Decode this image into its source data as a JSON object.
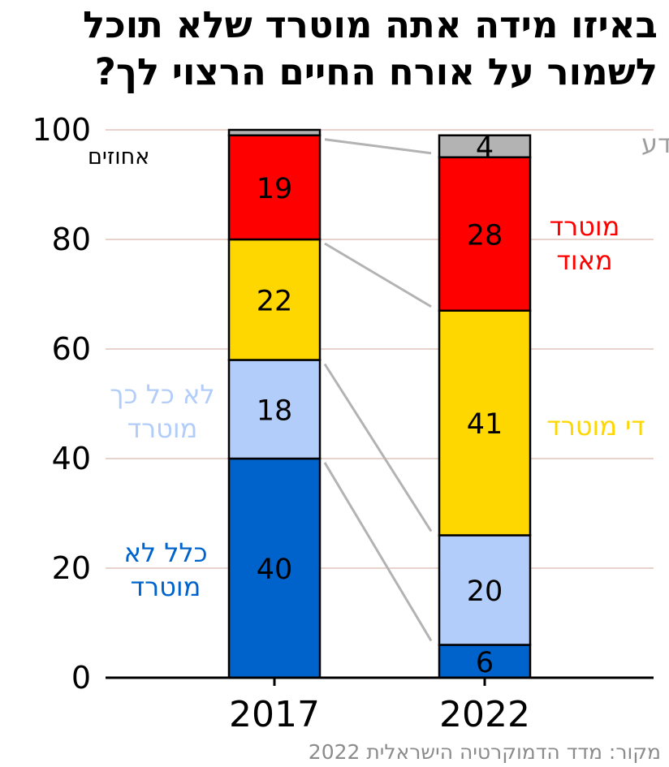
{
  "title": {
    "line1": "באיזו מידה אתה מוטרד שלא תוכל",
    "line2": "לשמור על אורח החיים הרצוי לך?"
  },
  "source": "מקור: מדד הדמוקרטיה הישראלית 2022",
  "colors": {
    "not_at_all": "#0063cb",
    "not_so": "#b3cdfa",
    "fairly": "#ffd700",
    "very": "#ff0000",
    "dont_know": "#b3b3b3",
    "grid": "#e8d2cc",
    "connector": "#b3b3b3"
  },
  "chart_data": {
    "type": "bar",
    "stacked": true,
    "categories": [
      "2017",
      "2022"
    ],
    "ylim": [
      0,
      100
    ],
    "yticks": [
      0,
      20,
      40,
      60,
      80,
      100
    ],
    "ylabel": "אחוזים",
    "xlabel": "",
    "grid": true,
    "series": [
      {
        "key": "not_at_all",
        "name": "כלל לא מוטרד",
        "label_lines": [
          "כלל לא",
          "מוטרד"
        ],
        "values": [
          40,
          6
        ],
        "color": "#0063cb"
      },
      {
        "key": "not_so",
        "name": "לא כל כך מוטרד",
        "label_lines": [
          "לא כל כך",
          "מוטרד"
        ],
        "values": [
          18,
          20
        ],
        "color": "#b3cdfa"
      },
      {
        "key": "fairly",
        "name": "די מוטרד",
        "label_lines": [
          "די מוטרד"
        ],
        "values": [
          22,
          41
        ],
        "color": "#ffd700"
      },
      {
        "key": "very",
        "name": "מוטרד מאוד",
        "label_lines": [
          "מוטרד",
          "מאוד"
        ],
        "values": [
          19,
          28
        ],
        "color": "#ff0000"
      },
      {
        "key": "dont_know",
        "name": "לא יודע",
        "label_lines": [
          "לא יודע"
        ],
        "values": [
          1,
          4
        ],
        "color": "#b3b3b3"
      }
    ],
    "data_labels": [
      [
        "40",
        "6"
      ],
      [
        "18",
        "20"
      ],
      [
        "22",
        "41"
      ],
      [
        "19",
        "28"
      ],
      [
        "",
        "4"
      ]
    ]
  }
}
